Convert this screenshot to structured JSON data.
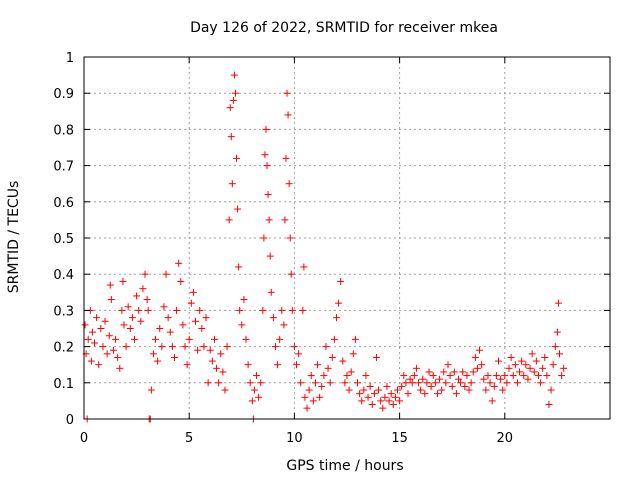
{
  "chart_data": {
    "type": "scatter",
    "title": "Day 126 of 2022, SRMTID for receiver mkea",
    "xlabel": "GPS time / hours",
    "ylabel": "SRMTID / TECUs",
    "xlim": [
      0,
      25
    ],
    "ylim": [
      0,
      1
    ],
    "xticks": [
      0,
      5,
      10,
      15,
      20
    ],
    "xtick_labels": [
      "0",
      "5",
      "10",
      "15",
      "20"
    ],
    "yticks": [
      0,
      0.1,
      0.2,
      0.3,
      0.4,
      0.5,
      0.6,
      0.7,
      0.8,
      0.9,
      1
    ],
    "ytick_labels": [
      "0",
      "0.1",
      "0.2",
      "0.3",
      "0.4",
      "0.5",
      "0.6",
      "0.7",
      "0.8",
      "0.9",
      "1"
    ],
    "grid": true,
    "marker": "plus",
    "color": "#ff0000",
    "series": [
      {
        "name": "SRMTID",
        "points": [
          [
            0.05,
            0.26
          ],
          [
            0.1,
            0.18
          ],
          [
            0.15,
            0.0
          ],
          [
            0.2,
            0.22
          ],
          [
            0.3,
            0.3
          ],
          [
            0.35,
            0.16
          ],
          [
            0.4,
            0.24
          ],
          [
            0.5,
            0.21
          ],
          [
            0.6,
            0.28
          ],
          [
            0.7,
            0.15
          ],
          [
            0.8,
            0.25
          ],
          [
            0.9,
            0.2
          ],
          [
            1.0,
            0.27
          ],
          [
            1.1,
            0.18
          ],
          [
            1.2,
            0.23
          ],
          [
            1.25,
            0.37
          ],
          [
            1.3,
            0.33
          ],
          [
            1.4,
            0.19
          ],
          [
            1.5,
            0.22
          ],
          [
            1.6,
            0.17
          ],
          [
            1.7,
            0.14
          ],
          [
            1.8,
            0.3
          ],
          [
            1.85,
            0.38
          ],
          [
            1.9,
            0.26
          ],
          [
            2.0,
            0.2
          ],
          [
            2.1,
            0.31
          ],
          [
            2.2,
            0.25
          ],
          [
            2.3,
            0.28
          ],
          [
            2.4,
            0.22
          ],
          [
            2.5,
            0.34
          ],
          [
            2.6,
            0.3
          ],
          [
            2.7,
            0.27
          ],
          [
            2.8,
            0.36
          ],
          [
            2.9,
            0.4
          ],
          [
            3.0,
            0.33
          ],
          [
            3.05,
            0.3
          ],
          [
            3.1,
            0.0
          ],
          [
            3.15,
            0.0
          ],
          [
            3.2,
            0.08
          ],
          [
            3.3,
            0.18
          ],
          [
            3.4,
            0.22
          ],
          [
            3.5,
            0.16
          ],
          [
            3.6,
            0.25
          ],
          [
            3.7,
            0.2
          ],
          [
            3.8,
            0.31
          ],
          [
            3.9,
            0.4
          ],
          [
            4.0,
            0.28
          ],
          [
            4.1,
            0.24
          ],
          [
            4.2,
            0.2
          ],
          [
            4.3,
            0.17
          ],
          [
            4.4,
            0.3
          ],
          [
            4.5,
            0.43
          ],
          [
            4.6,
            0.38
          ],
          [
            4.7,
            0.26
          ],
          [
            4.8,
            0.2
          ],
          [
            4.9,
            0.15
          ],
          [
            5.0,
            0.22
          ],
          [
            5.1,
            0.32
          ],
          [
            5.2,
            0.35
          ],
          [
            5.3,
            0.27
          ],
          [
            5.4,
            0.19
          ],
          [
            5.5,
            0.3
          ],
          [
            5.6,
            0.25
          ],
          [
            5.7,
            0.2
          ],
          [
            5.8,
            0.28
          ],
          [
            5.9,
            0.1
          ],
          [
            6.0,
            0.19
          ],
          [
            6.1,
            0.16
          ],
          [
            6.2,
            0.22
          ],
          [
            6.3,
            0.14
          ],
          [
            6.4,
            0.1
          ],
          [
            6.5,
            0.18
          ],
          [
            6.6,
            0.13
          ],
          [
            6.7,
            0.08
          ],
          [
            6.8,
            0.2
          ],
          [
            6.9,
            0.55
          ],
          [
            6.95,
            0.86
          ],
          [
            7.0,
            0.78
          ],
          [
            7.05,
            0.65
          ],
          [
            7.1,
            0.88
          ],
          [
            7.15,
            0.95
          ],
          [
            7.2,
            0.9
          ],
          [
            7.25,
            0.72
          ],
          [
            7.3,
            0.58
          ],
          [
            7.35,
            0.42
          ],
          [
            7.4,
            0.3
          ],
          [
            7.5,
            0.26
          ],
          [
            7.6,
            0.33
          ],
          [
            7.7,
            0.22
          ],
          [
            7.8,
            0.15
          ],
          [
            7.9,
            0.1
          ],
          [
            8.0,
            0.05
          ],
          [
            8.05,
            0.0
          ],
          [
            8.1,
            0.08
          ],
          [
            8.2,
            0.12
          ],
          [
            8.3,
            0.06
          ],
          [
            8.4,
            0.1
          ],
          [
            8.5,
            0.3
          ],
          [
            8.55,
            0.5
          ],
          [
            8.6,
            0.73
          ],
          [
            8.65,
            0.8
          ],
          [
            8.7,
            0.7
          ],
          [
            8.75,
            0.62
          ],
          [
            8.8,
            0.55
          ],
          [
            8.85,
            0.45
          ],
          [
            8.9,
            0.35
          ],
          [
            9.0,
            0.28
          ],
          [
            9.1,
            0.2
          ],
          [
            9.2,
            0.15
          ],
          [
            9.3,
            0.22
          ],
          [
            9.4,
            0.3
          ],
          [
            9.5,
            0.26
          ],
          [
            9.55,
            0.55
          ],
          [
            9.6,
            0.72
          ],
          [
            9.65,
            0.9
          ],
          [
            9.7,
            0.84
          ],
          [
            9.75,
            0.65
          ],
          [
            9.8,
            0.5
          ],
          [
            9.85,
            0.4
          ],
          [
            9.9,
            0.3
          ],
          [
            10.0,
            0.2
          ],
          [
            10.1,
            0.15
          ],
          [
            10.2,
            0.18
          ],
          [
            10.3,
            0.1
          ],
          [
            10.4,
            0.3
          ],
          [
            10.45,
            0.42
          ],
          [
            10.5,
            0.06
          ],
          [
            10.6,
            0.03
          ],
          [
            10.7,
            0.08
          ],
          [
            10.8,
            0.12
          ],
          [
            10.9,
            0.05
          ],
          [
            11.0,
            0.1
          ],
          [
            11.1,
            0.15
          ],
          [
            11.2,
            0.06
          ],
          [
            11.3,
            0.09
          ],
          [
            11.4,
            0.12
          ],
          [
            11.5,
            0.2
          ],
          [
            11.6,
            0.14
          ],
          [
            11.7,
            0.1
          ],
          [
            11.8,
            0.17
          ],
          [
            11.9,
            0.22
          ],
          [
            12.0,
            0.28
          ],
          [
            12.1,
            0.32
          ],
          [
            12.2,
            0.38
          ],
          [
            12.3,
            0.16
          ],
          [
            12.4,
            0.1
          ],
          [
            12.5,
            0.12
          ],
          [
            12.6,
            0.08
          ],
          [
            12.7,
            0.13
          ],
          [
            12.8,
            0.18
          ],
          [
            12.9,
            0.22
          ],
          [
            13.0,
            0.1
          ],
          [
            13.1,
            0.07
          ],
          [
            13.2,
            0.05
          ],
          [
            13.3,
            0.08
          ],
          [
            13.4,
            0.12
          ],
          [
            13.5,
            0.06
          ],
          [
            13.6,
            0.09
          ],
          [
            13.7,
            0.04
          ],
          [
            13.8,
            0.07
          ],
          [
            13.9,
            0.17
          ],
          [
            14.0,
            0.08
          ],
          [
            14.1,
            0.05
          ],
          [
            14.2,
            0.03
          ],
          [
            14.3,
            0.06
          ],
          [
            14.4,
            0.09
          ],
          [
            14.5,
            0.05
          ],
          [
            14.6,
            0.07
          ],
          [
            14.7,
            0.04
          ],
          [
            14.8,
            0.06
          ],
          [
            14.9,
            0.08
          ],
          [
            15.0,
            0.05
          ],
          [
            15.1,
            0.09
          ],
          [
            15.2,
            0.12
          ],
          [
            15.3,
            0.1
          ],
          [
            15.4,
            0.07
          ],
          [
            15.5,
            0.11
          ],
          [
            15.6,
            0.1
          ],
          [
            15.7,
            0.12
          ],
          [
            15.8,
            0.14
          ],
          [
            15.9,
            0.1
          ],
          [
            16.0,
            0.08
          ],
          [
            16.1,
            0.11
          ],
          [
            16.2,
            0.07
          ],
          [
            16.3,
            0.1
          ],
          [
            16.4,
            0.13
          ],
          [
            16.5,
            0.09
          ],
          [
            16.6,
            0.12
          ],
          [
            16.7,
            0.1
          ],
          [
            16.8,
            0.07
          ],
          [
            16.9,
            0.11
          ],
          [
            17.0,
            0.08
          ],
          [
            17.1,
            0.13
          ],
          [
            17.2,
            0.1
          ],
          [
            17.3,
            0.15
          ],
          [
            17.4,
            0.12
          ],
          [
            17.5,
            0.09
          ],
          [
            17.6,
            0.13
          ],
          [
            17.7,
            0.07
          ],
          [
            17.8,
            0.11
          ],
          [
            17.9,
            0.1
          ],
          [
            18.0,
            0.13
          ],
          [
            18.1,
            0.09
          ],
          [
            18.2,
            0.12
          ],
          [
            18.3,
            0.08
          ],
          [
            18.4,
            0.1
          ],
          [
            18.5,
            0.13
          ],
          [
            18.6,
            0.17
          ],
          [
            18.7,
            0.14
          ],
          [
            18.8,
            0.19
          ],
          [
            18.9,
            0.15
          ],
          [
            19.0,
            0.11
          ],
          [
            19.1,
            0.08
          ],
          [
            19.2,
            0.12
          ],
          [
            19.3,
            0.1
          ],
          [
            19.4,
            0.05
          ],
          [
            19.5,
            0.09
          ],
          [
            19.6,
            0.12
          ],
          [
            19.7,
            0.16
          ],
          [
            19.8,
            0.11
          ],
          [
            19.9,
            0.08
          ],
          [
            20.0,
            0.12
          ],
          [
            20.1,
            0.1
          ],
          [
            20.2,
            0.14
          ],
          [
            20.3,
            0.17
          ],
          [
            20.4,
            0.12
          ],
          [
            20.5,
            0.15
          ],
          [
            20.6,
            0.1
          ],
          [
            20.7,
            0.13
          ],
          [
            20.8,
            0.16
          ],
          [
            20.9,
            0.12
          ],
          [
            21.0,
            0.15
          ],
          [
            21.1,
            0.11
          ],
          [
            21.2,
            0.14
          ],
          [
            21.3,
            0.18
          ],
          [
            21.4,
            0.13
          ],
          [
            21.5,
            0.16
          ],
          [
            21.6,
            0.12
          ],
          [
            21.7,
            0.1
          ],
          [
            21.8,
            0.14
          ],
          [
            21.9,
            0.17
          ],
          [
            22.0,
            0.12
          ],
          [
            22.1,
            0.04
          ],
          [
            22.2,
            0.08
          ],
          [
            22.3,
            0.15
          ],
          [
            22.4,
            0.2
          ],
          [
            22.5,
            0.24
          ],
          [
            22.55,
            0.32
          ],
          [
            22.6,
            0.18
          ],
          [
            22.7,
            0.12
          ],
          [
            22.8,
            0.14
          ]
        ]
      }
    ]
  }
}
